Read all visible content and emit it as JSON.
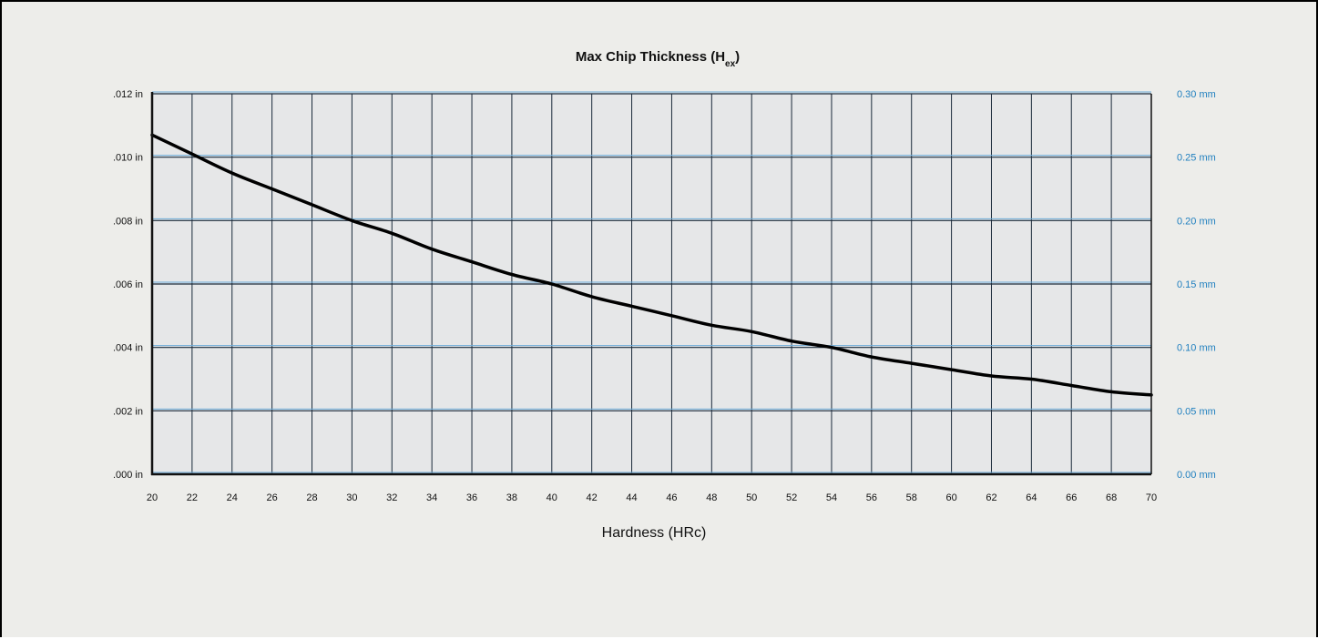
{
  "chart_data": {
    "type": "line",
    "title": "Max Chip Thickness (H",
    "title_subscript": "ex",
    "title_suffix": ")",
    "xlabel": "Hardness (HRc)",
    "ylabel": "",
    "xlim": [
      20,
      70
    ],
    "ylim": [
      0,
      0.012
    ],
    "y2lim": [
      0,
      0.3
    ],
    "x_ticks": [
      20,
      22,
      24,
      26,
      28,
      30,
      32,
      34,
      36,
      38,
      40,
      42,
      44,
      46,
      48,
      50,
      52,
      54,
      56,
      58,
      60,
      62,
      64,
      66,
      68,
      70
    ],
    "y_ticks": [
      0,
      0.002,
      0.004,
      0.006,
      0.008,
      0.01,
      0.012
    ],
    "y_tick_labels": [
      ".000 in",
      ".002 in",
      ".004 in",
      ".006 in",
      ".008 in",
      ".010 in",
      ".012 in"
    ],
    "y2_ticks": [
      0,
      0.05,
      0.1,
      0.15,
      0.2,
      0.25,
      0.3
    ],
    "y2_tick_labels": [
      "0.00 mm",
      "0.05 mm",
      "0.10 mm",
      "0.15 mm",
      "0.20 mm",
      "0.25 mm",
      "0.30 mm"
    ],
    "grid": true,
    "series": [
      {
        "x": [
          20,
          22,
          24,
          26,
          28,
          30,
          32,
          34,
          36,
          38,
          40,
          42,
          44,
          46,
          48,
          50,
          52,
          54,
          56,
          58,
          60,
          62,
          64,
          66,
          68,
          70
        ],
        "y": [
          0.0107,
          0.0101,
          0.0095,
          0.009,
          0.0085,
          0.008,
          0.0076,
          0.0071,
          0.0067,
          0.0063,
          0.006,
          0.0056,
          0.0053,
          0.005,
          0.0047,
          0.0045,
          0.0042,
          0.004,
          0.0037,
          0.0035,
          0.0033,
          0.0031,
          0.003,
          0.0028,
          0.0026,
          0.0025
        ]
      }
    ]
  },
  "colors": {
    "background": "#ededea",
    "plot_area": "#e6e7e8",
    "grid_line": "#1a2a3a",
    "grid_highlight": "#6aaad8",
    "curve": "#000000",
    "right_axis_text": "#1f7fbf"
  }
}
